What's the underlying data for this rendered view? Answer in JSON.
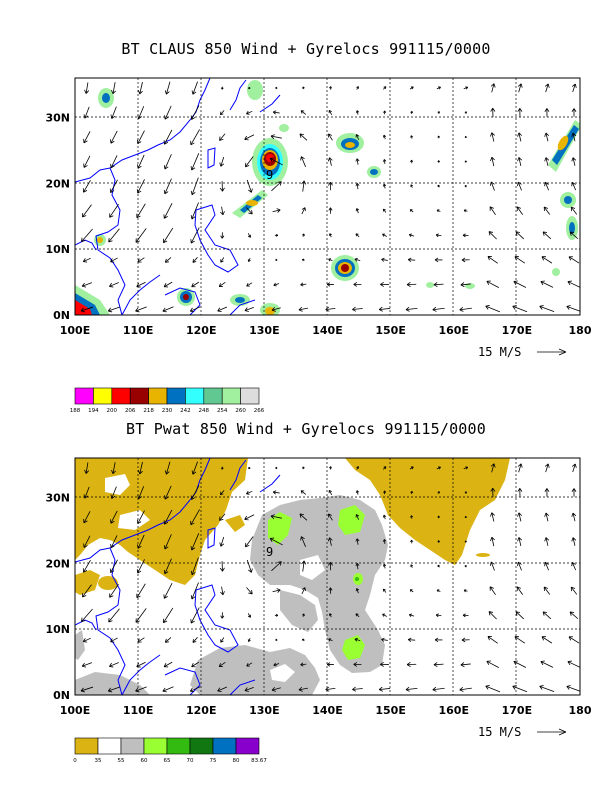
{
  "panels": [
    {
      "title": "BT CLAUS 850 Wind + Gyrelocs 991115/0000",
      "field": "claus",
      "storm_marker": "9",
      "storm_lonlat": [
        130.7,
        21.2
      ],
      "reference_vector_label": "15 M/S",
      "colorbar": {
        "colors": [
          "#ff00ff",
          "#ffff00",
          "#ff0000",
          "#990000",
          "#e8b400",
          "#0070c0",
          "#33ffff",
          "#60c890",
          "#a0f0a0",
          "#dddddd"
        ],
        "labels": [
          "188",
          "194",
          "200",
          "206",
          "218",
          "230",
          "242",
          "248",
          "254",
          "260",
          "266"
        ]
      }
    },
    {
      "title": "BT Pwat 850 Wind + Gyrelocs 991115/0000",
      "field": "pwat",
      "storm_marker": "9",
      "storm_lonlat": [
        130.7,
        20.6
      ],
      "reference_vector_label": "15 M/S",
      "colorbar": {
        "colors": [
          "#dbb413",
          "#ffffff",
          "#bfbfbf",
          "#99ff33",
          "#33bb11",
          "#117711",
          "#0070c0",
          "#8800cc"
        ],
        "labels": [
          "0",
          "35",
          "55",
          "60",
          "65",
          "70",
          "75",
          "80",
          "83.67"
        ]
      }
    }
  ],
  "axes": {
    "lon_ticks": [
      "100E",
      "110E",
      "120E",
      "130E",
      "140E",
      "150E",
      "160E",
      "170E",
      "180"
    ],
    "lat_ticks": [
      "0N",
      "10N",
      "20N",
      "30N"
    ],
    "lon_range": [
      100,
      180
    ],
    "lat_range": [
      0,
      36
    ]
  },
  "colors": {
    "coast": "#0000ff",
    "grid": "#000000",
    "arrow": "#000000"
  }
}
